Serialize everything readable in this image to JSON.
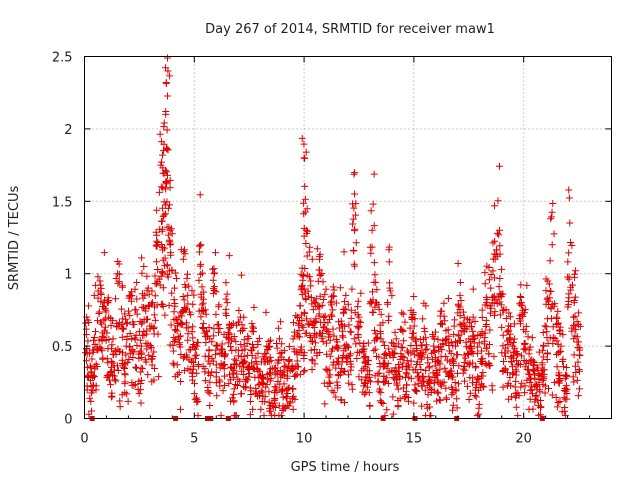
{
  "chart_data": {
    "type": "scatter",
    "title": "Day 267 of 2014, SRMTID for receiver maw1",
    "xlabel": "GPS time / hours",
    "ylabel": "SRMTID / TECUs",
    "xlim": [
      0,
      24
    ],
    "ylim": [
      0,
      2.5
    ],
    "grid": true,
    "x_ticks": [
      {
        "value": 0,
        "label": "0"
      },
      {
        "value": 5,
        "label": "5"
      },
      {
        "value": 10,
        "label": "10"
      },
      {
        "value": 15,
        "label": "15"
      },
      {
        "value": 20,
        "label": "20"
      }
    ],
    "y_ticks": [
      {
        "value": 0,
        "label": "0"
      },
      {
        "value": 0.5,
        "label": "0.5"
      },
      {
        "value": 1,
        "label": "1"
      },
      {
        "value": 1.5,
        "label": "1.5"
      },
      {
        "value": 2,
        "label": "2"
      },
      {
        "value": 2.5,
        "label": "2.5"
      }
    ],
    "marker": "+",
    "color": "#e00000",
    "series": [
      {
        "name": "maw1",
        "points_note": "representative sample read from the plot",
        "x": [
          0.1,
          0.3,
          0.5,
          0.7,
          0.9,
          1.1,
          1.3,
          1.5,
          1.7,
          1.9,
          2.1,
          2.3,
          2.5,
          2.7,
          2.9,
          3.1,
          3.3,
          3.5,
          3.6,
          3.7,
          3.8,
          3.9,
          4.1,
          4.3,
          4.5,
          4.7,
          4.9,
          5.1,
          5.3,
          5.5,
          5.7,
          5.9,
          6.1,
          6.3,
          6.5,
          6.7,
          6.9,
          7.1,
          7.3,
          7.5,
          7.7,
          7.9,
          8.1,
          8.3,
          8.5,
          8.7,
          8.9,
          9.1,
          9.3,
          9.5,
          9.7,
          9.9,
          10.0,
          10.1,
          10.3,
          10.5,
          10.7,
          10.9,
          11.1,
          11.3,
          11.5,
          11.7,
          11.9,
          12.1,
          12.3,
          12.5,
          12.7,
          12.9,
          13.1,
          13.3,
          13.5,
          13.7,
          13.9,
          14.1,
          14.3,
          14.5,
          14.7,
          14.9,
          15.1,
          15.3,
          15.5,
          15.7,
          15.9,
          16.1,
          16.3,
          16.5,
          16.7,
          16.9,
          17.1,
          17.3,
          17.5,
          17.7,
          17.9,
          18.1,
          18.3,
          18.5,
          18.7,
          18.9,
          19.1,
          19.3,
          19.5,
          19.7,
          19.9,
          20.1,
          20.3,
          20.5,
          20.7,
          20.9,
          21.1,
          21.3,
          21.5,
          21.7,
          21.9,
          22.1,
          22.3,
          22.5
        ],
        "y": [
          0.7,
          0.35,
          0.6,
          0.95,
          0.8,
          0.7,
          0.55,
          1.0,
          0.65,
          0.5,
          0.85,
          0.75,
          0.6,
          1.05,
          0.9,
          0.8,
          1.2,
          1.6,
          1.85,
          2.1,
          2.4,
          1.3,
          0.9,
          0.7,
          1.1,
          0.85,
          0.6,
          0.5,
          1.2,
          0.75,
          0.55,
          1.0,
          0.65,
          0.45,
          0.8,
          0.55,
          0.4,
          0.7,
          0.5,
          0.35,
          0.6,
          0.45,
          0.3,
          0.5,
          0.4,
          0.35,
          0.45,
          0.3,
          0.4,
          0.55,
          0.7,
          0.9,
          1.8,
          1.3,
          0.95,
          0.8,
          1.1,
          0.7,
          0.6,
          0.75,
          0.5,
          0.65,
          0.85,
          0.6,
          1.55,
          0.7,
          0.5,
          0.4,
          1.3,
          0.8,
          0.55,
          0.45,
          0.9,
          0.5,
          0.35,
          0.6,
          0.4,
          0.7,
          0.55,
          0.45,
          0.6,
          0.35,
          0.5,
          0.4,
          0.65,
          0.55,
          0.45,
          0.5,
          0.85,
          0.6,
          0.55,
          0.7,
          0.45,
          0.6,
          0.8,
          0.9,
          1.1,
          1.3,
          0.75,
          0.6,
          0.5,
          0.45,
          0.8,
          0.6,
          0.4,
          0.3,
          0.25,
          0.5,
          0.95,
          1.2,
          0.7,
          0.5,
          0.3,
          1.35,
          0.8,
          0.65
        ]
      }
    ]
  }
}
